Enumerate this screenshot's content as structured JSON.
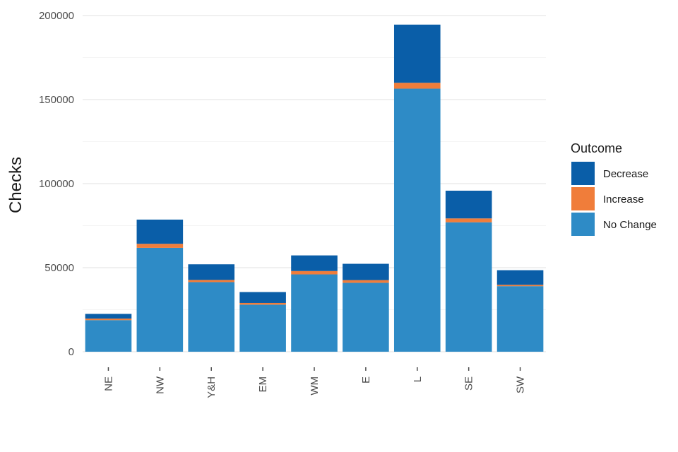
{
  "chart_data": {
    "type": "bar",
    "stacked": true,
    "categories": [
      "NE",
      "NW",
      "Y&H",
      "EM",
      "WM",
      "E",
      "L",
      "SE",
      "SW"
    ],
    "series": [
      {
        "name": "No Change",
        "color": "#2e8bc6",
        "values": [
          18800,
          61800,
          41400,
          28000,
          46000,
          41000,
          156500,
          77000,
          39000
        ]
      },
      {
        "name": "Increase",
        "color": "#f07d3a",
        "values": [
          900,
          2400,
          1300,
          1000,
          2000,
          1600,
          3500,
          2300,
          800
        ]
      },
      {
        "name": "Decrease",
        "color": "#0a5ea8",
        "values": [
          2800,
          14400,
          9300,
          6500,
          9300,
          9700,
          34600,
          16500,
          8700
        ]
      }
    ],
    "title": "",
    "xlabel": "",
    "ylabel": "Checks",
    "ylim": [
      0,
      200000
    ],
    "yticks": [
      "0",
      "50000",
      "100000",
      "150000",
      "200000"
    ],
    "grid": true,
    "legend": {
      "title": "Outcome",
      "position": "right",
      "items": [
        "Decrease",
        "Increase",
        "No Change"
      ]
    }
  }
}
